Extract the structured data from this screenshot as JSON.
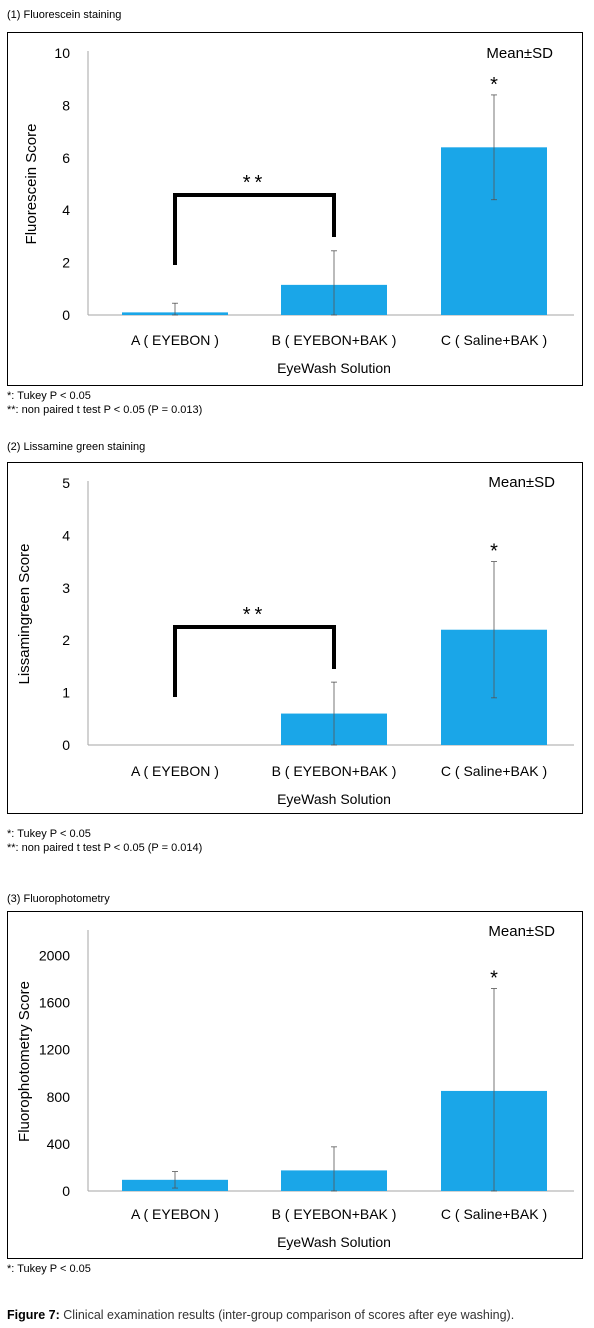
{
  "chart_data": [
    {
      "type": "bar",
      "panel_title": "(1) Fluorescein staining",
      "legend_note": "Mean±SD",
      "xlabel": "EyeWash Solution",
      "ylabel": "Fluorescein Score",
      "ylim": [
        0,
        10
      ],
      "yticks": [
        "0",
        "2",
        "4",
        "6",
        "8",
        "10"
      ],
      "categories": [
        "A ( EYEBON )",
        "B ( EYEBON+BAK )",
        "C ( Saline+BAK )"
      ],
      "values": [
        0.1,
        1.15,
        6.4
      ],
      "sd": [
        0.35,
        1.3,
        2.0
      ],
      "markers": [
        "",
        "",
        "*"
      ],
      "bracket": {
        "from": 0,
        "to": 1,
        "label": "**"
      },
      "bar_color": "#1aa6e8",
      "footnotes": [
        "*: Tukey P < 0.05",
        "**: non paired t test P < 0.05 (P = 0.013)"
      ]
    },
    {
      "type": "bar",
      "panel_title": "(2) Lissamine green staining",
      "legend_note": "Mean±SD",
      "xlabel": "EyeWash Solution",
      "ylabel": "Lissamingreen Score",
      "ylim": [
        0,
        5
      ],
      "yticks": [
        "0",
        "1",
        "2",
        "3",
        "4",
        "5"
      ],
      "categories": [
        "A ( EYEBON )",
        "B ( EYEBON+BAK )",
        "C ( Saline+BAK )"
      ],
      "values": [
        0,
        0.6,
        2.2
      ],
      "sd": [
        0,
        0.6,
        1.3
      ],
      "markers": [
        "",
        "",
        "*"
      ],
      "bracket": {
        "from": 0,
        "to": 1,
        "label": "**"
      },
      "bar_color": "#1aa6e8",
      "footnotes": [
        "*: Tukey P < 0.05",
        "**: non paired t test P < 0.05 (P = 0.014)"
      ]
    },
    {
      "type": "bar",
      "panel_title": "(3) Fluorophotometry",
      "legend_note": "Mean±SD",
      "xlabel": "EyeWash Solution",
      "ylabel": "Fluorophotometry Score",
      "ylim": [
        0,
        2200
      ],
      "yticks": [
        "0",
        "400",
        "800",
        "1200",
        "1600",
        "2000"
      ],
      "categories": [
        "A ( EYEBON )",
        "B ( EYEBON+BAK )",
        "C ( Saline+BAK )"
      ],
      "values": [
        95,
        175,
        850
      ],
      "sd": [
        70,
        200,
        870
      ],
      "markers": [
        "",
        "",
        "*"
      ],
      "bracket": null,
      "bar_color": "#1aa6e8",
      "footnotes": [
        "*: Tukey P < 0.05"
      ]
    }
  ],
  "caption": {
    "label": "Figure 7:",
    "text": " Clinical examination results (inter-group comparison of scores after eye washing)."
  }
}
